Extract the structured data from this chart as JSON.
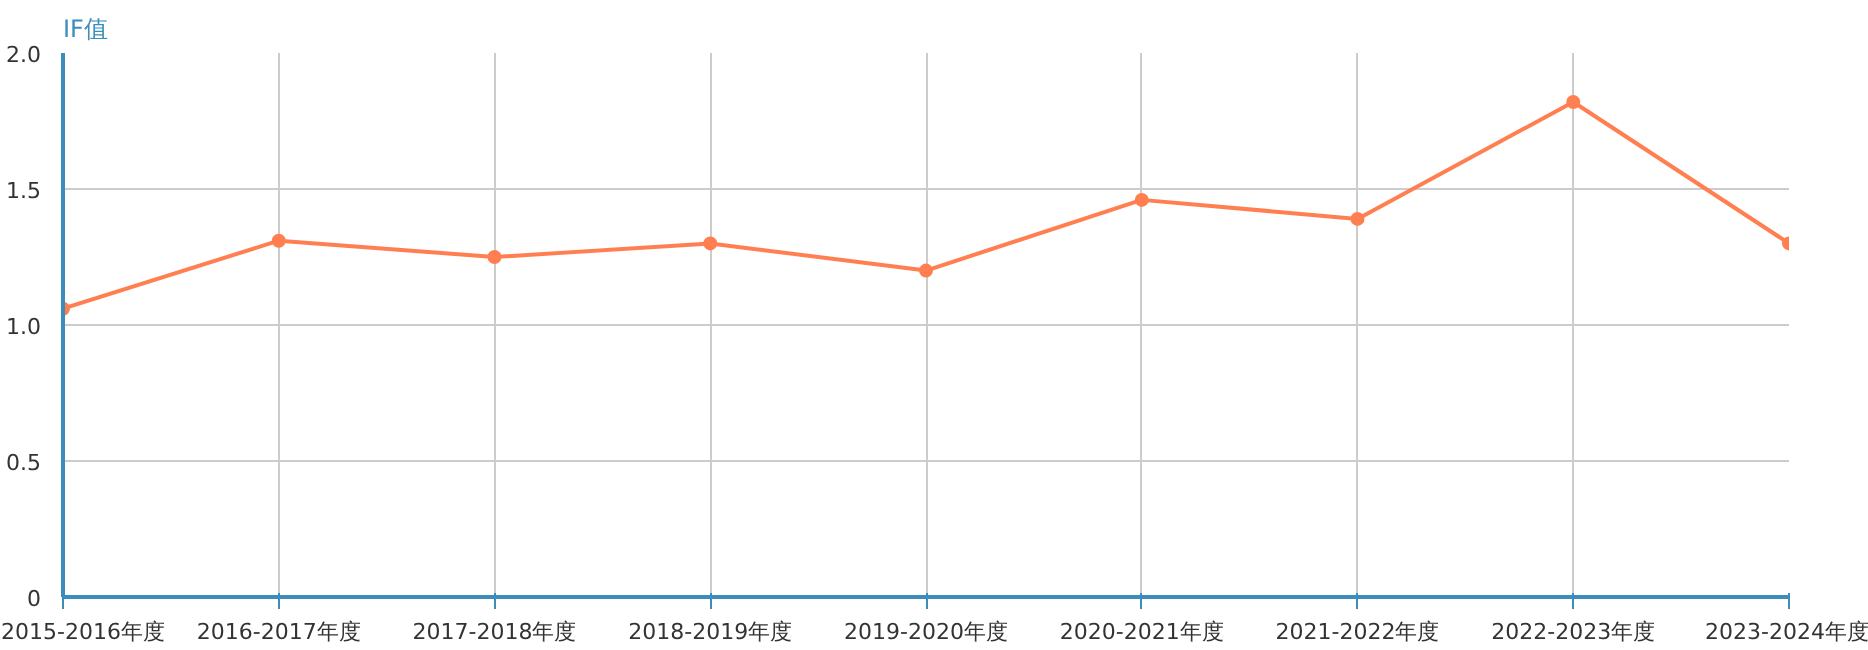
{
  "chart_data": {
    "type": "line",
    "ylabel": "IF值",
    "categories": [
      "2015-2016年度",
      "2016-2017年度",
      "2017-2018年度",
      "2018-2019年度",
      "2019-2020年度",
      "2020-2021年度",
      "2021-2022年度",
      "2022-2023年度",
      "2023-2024年度"
    ],
    "series": [
      {
        "color": "#ff7f50",
        "values": [
          1.06,
          1.31,
          1.25,
          1.3,
          1.2,
          1.46,
          1.39,
          1.82,
          1.3
        ]
      }
    ],
    "ylim": [
      0,
      2
    ],
    "yticks": [
      0,
      0.5,
      {
        "value": 1,
        "label": "1.0"
      },
      1.5,
      {
        "value": 2,
        "label": "2.0"
      }
    ],
    "grid": true,
    "marker": "circle",
    "line_style": "solid"
  }
}
